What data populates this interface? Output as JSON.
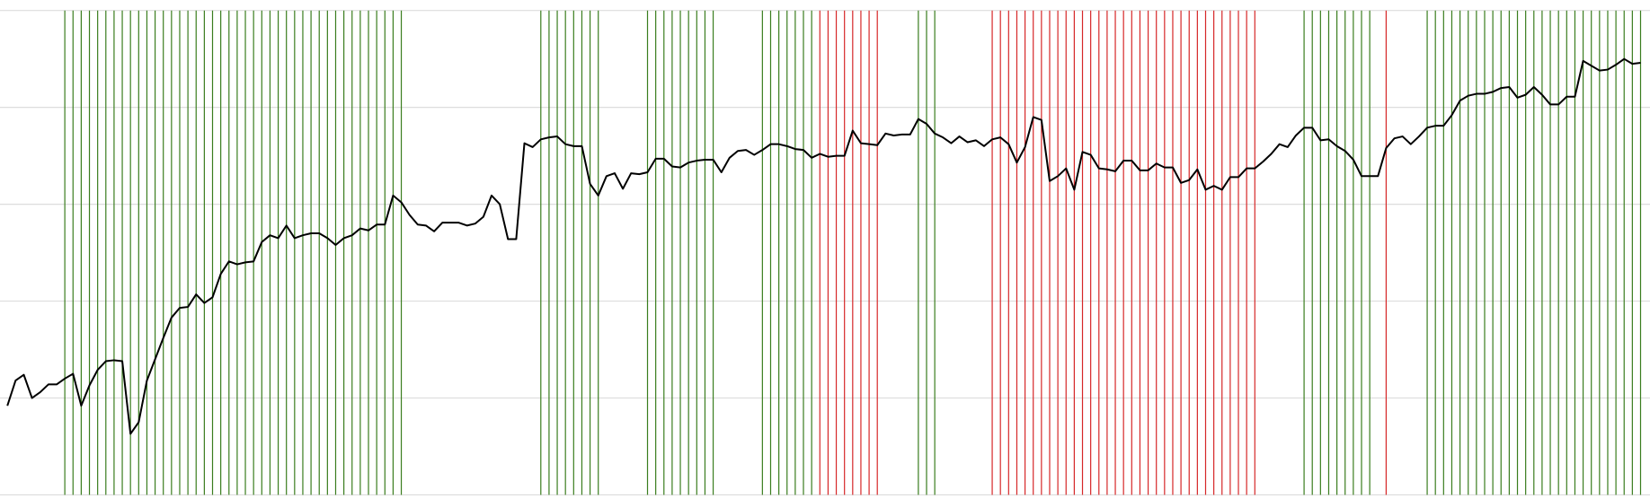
{
  "chart_data": {
    "type": "line",
    "color": "#000000",
    "buy_color": "#3a7d1e",
    "sell_color": "#d62728",
    "grid": true,
    "xlim": [
      0,
      199
    ],
    "ylim": [
      0,
      5
    ],
    "yticks": [
      0,
      1,
      2,
      3,
      4,
      5
    ],
    "values": [
      0.92,
      1.18,
      1.24,
      1.0,
      1.06,
      1.14,
      1.14,
      1.2,
      1.25,
      0.92,
      1.13,
      1.29,
      1.38,
      1.39,
      1.38,
      0.63,
      0.75,
      1.18,
      1.4,
      1.62,
      1.83,
      1.93,
      1.94,
      2.07,
      1.98,
      2.04,
      2.28,
      2.41,
      2.38,
      2.4,
      2.41,
      2.61,
      2.68,
      2.65,
      2.78,
      2.65,
      2.68,
      2.7,
      2.7,
      2.65,
      2.58,
      2.65,
      2.68,
      2.75,
      2.73,
      2.79,
      2.79,
      3.09,
      3.02,
      2.89,
      2.79,
      2.78,
      2.72,
      2.81,
      2.81,
      2.81,
      2.78,
      2.8,
      2.87,
      3.09,
      3.0,
      2.64,
      2.64,
      3.63,
      3.59,
      3.67,
      3.69,
      3.7,
      3.62,
      3.6,
      3.6,
      3.21,
      3.09,
      3.29,
      3.32,
      3.16,
      3.32,
      3.31,
      3.33,
      3.47,
      3.47,
      3.39,
      3.38,
      3.43,
      3.45,
      3.46,
      3.46,
      3.33,
      3.48,
      3.55,
      3.56,
      3.51,
      3.56,
      3.62,
      3.62,
      3.6,
      3.57,
      3.56,
      3.48,
      3.52,
      3.49,
      3.5,
      3.5,
      3.76,
      3.63,
      3.62,
      3.61,
      3.73,
      3.71,
      3.72,
      3.72,
      3.88,
      3.83,
      3.73,
      3.69,
      3.63,
      3.7,
      3.64,
      3.66,
      3.6,
      3.67,
      3.69,
      3.62,
      3.43,
      3.59,
      3.9,
      3.87,
      3.24,
      3.29,
      3.37,
      3.15,
      3.54,
      3.51,
      3.37,
      3.36,
      3.34,
      3.45,
      3.45,
      3.35,
      3.35,
      3.42,
      3.38,
      3.38,
      3.22,
      3.25,
      3.36,
      3.15,
      3.19,
      3.15,
      3.28,
      3.28,
      3.37,
      3.37,
      3.44,
      3.52,
      3.62,
      3.59,
      3.71,
      3.79,
      3.79,
      3.66,
      3.67,
      3.6,
      3.55,
      3.46,
      3.29,
      3.29,
      3.29,
      3.58,
      3.68,
      3.7,
      3.62,
      3.7,
      3.79,
      3.81,
      3.81,
      3.92,
      4.07,
      4.12,
      4.14,
      4.14,
      4.16,
      4.2,
      4.21,
      4.1,
      4.13,
      4.21,
      4.13,
      4.03,
      4.03,
      4.11,
      4.11,
      4.48,
      4.43,
      4.38,
      4.39,
      4.44,
      4.5,
      4.45,
      4.46
    ],
    "buy_x": [
      7,
      8,
      9,
      10,
      11,
      12,
      13,
      14,
      15,
      16,
      17,
      18,
      19,
      20,
      21,
      22,
      23,
      24,
      25,
      26,
      27,
      28,
      29,
      30,
      31,
      32,
      33,
      34,
      35,
      36,
      37,
      38,
      39,
      40,
      41,
      42,
      43,
      44,
      45,
      46,
      47,
      48,
      65,
      66,
      67,
      68,
      69,
      70,
      71,
      72,
      78,
      79,
      80,
      81,
      82,
      83,
      84,
      85,
      86,
      92,
      93,
      94,
      95,
      96,
      97,
      98,
      111,
      112,
      113,
      158,
      159,
      160,
      161,
      162,
      163,
      164,
      165,
      166,
      173,
      174,
      175,
      176,
      177,
      178,
      179,
      180,
      181,
      182,
      183,
      184,
      185,
      186,
      187,
      188,
      189,
      190,
      191,
      192,
      193,
      194,
      195,
      196,
      197,
      198,
      199
    ],
    "sell_x": [
      99,
      100,
      101,
      102,
      103,
      104,
      105,
      106,
      120,
      121,
      122,
      123,
      124,
      125,
      126,
      127,
      128,
      129,
      130,
      131,
      132,
      133,
      134,
      135,
      136,
      137,
      138,
      139,
      140,
      141,
      142,
      143,
      144,
      145,
      146,
      147,
      148,
      149,
      150,
      151,
      152,
      168
    ]
  }
}
